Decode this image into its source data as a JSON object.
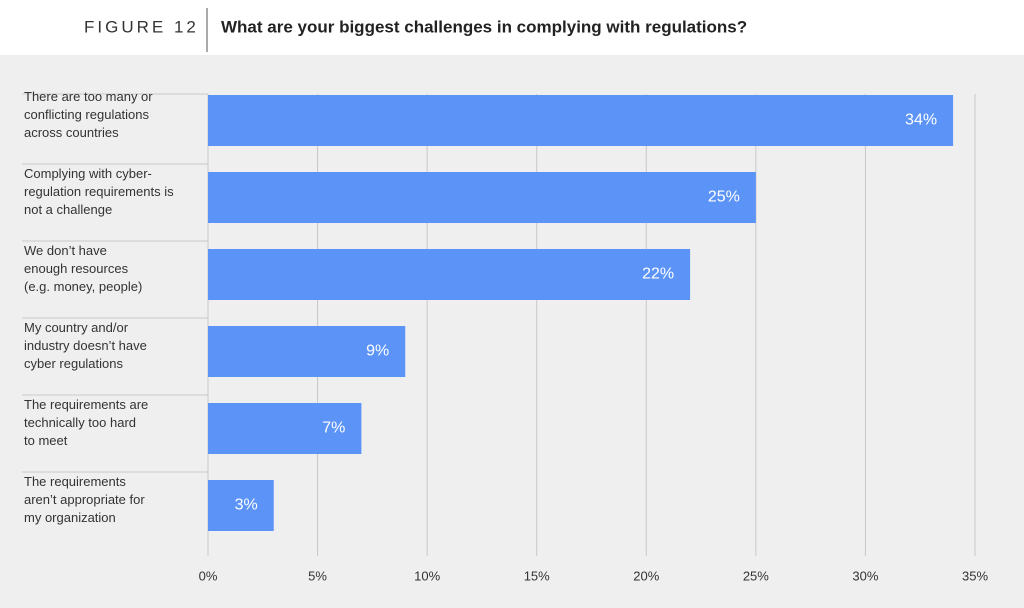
{
  "chart_data": {
    "type": "bar",
    "figure_label": "FIGURE 12",
    "title": "What are your biggest challenges in complying with regulations?",
    "categories": [
      "There are too many or\nconflicting regulations\nacross countries",
      "Complying with cyber-\nregulation requirements is\nnot a challenge",
      "We don’t have\nenough resources\n(e.g. money, people)",
      "My country and/or\nindustry doesn’t have\ncyber regulations",
      "The requirements are\ntechnically too hard\nto meet",
      "The requirements\naren’t appropriate for\nmy organization"
    ],
    "values": [
      34,
      25,
      22,
      9,
      7,
      3
    ],
    "value_labels": [
      "34%",
      "25%",
      "22%",
      "9%",
      "7%",
      "3%"
    ],
    "color": "#5b93f7",
    "xlim": [
      0,
      35
    ],
    "xticks": [
      {
        "value": 0,
        "label": "0%"
      },
      {
        "value": 5,
        "label": "5%"
      },
      {
        "value": 10,
        "label": "10%"
      },
      {
        "value": 15,
        "label": "15%"
      },
      {
        "value": 20,
        "label": "20%"
      },
      {
        "value": 25,
        "label": "25%"
      },
      {
        "value": 30,
        "label": "30%"
      },
      {
        "value": 35,
        "label": "35%"
      }
    ],
    "grid": true
  }
}
